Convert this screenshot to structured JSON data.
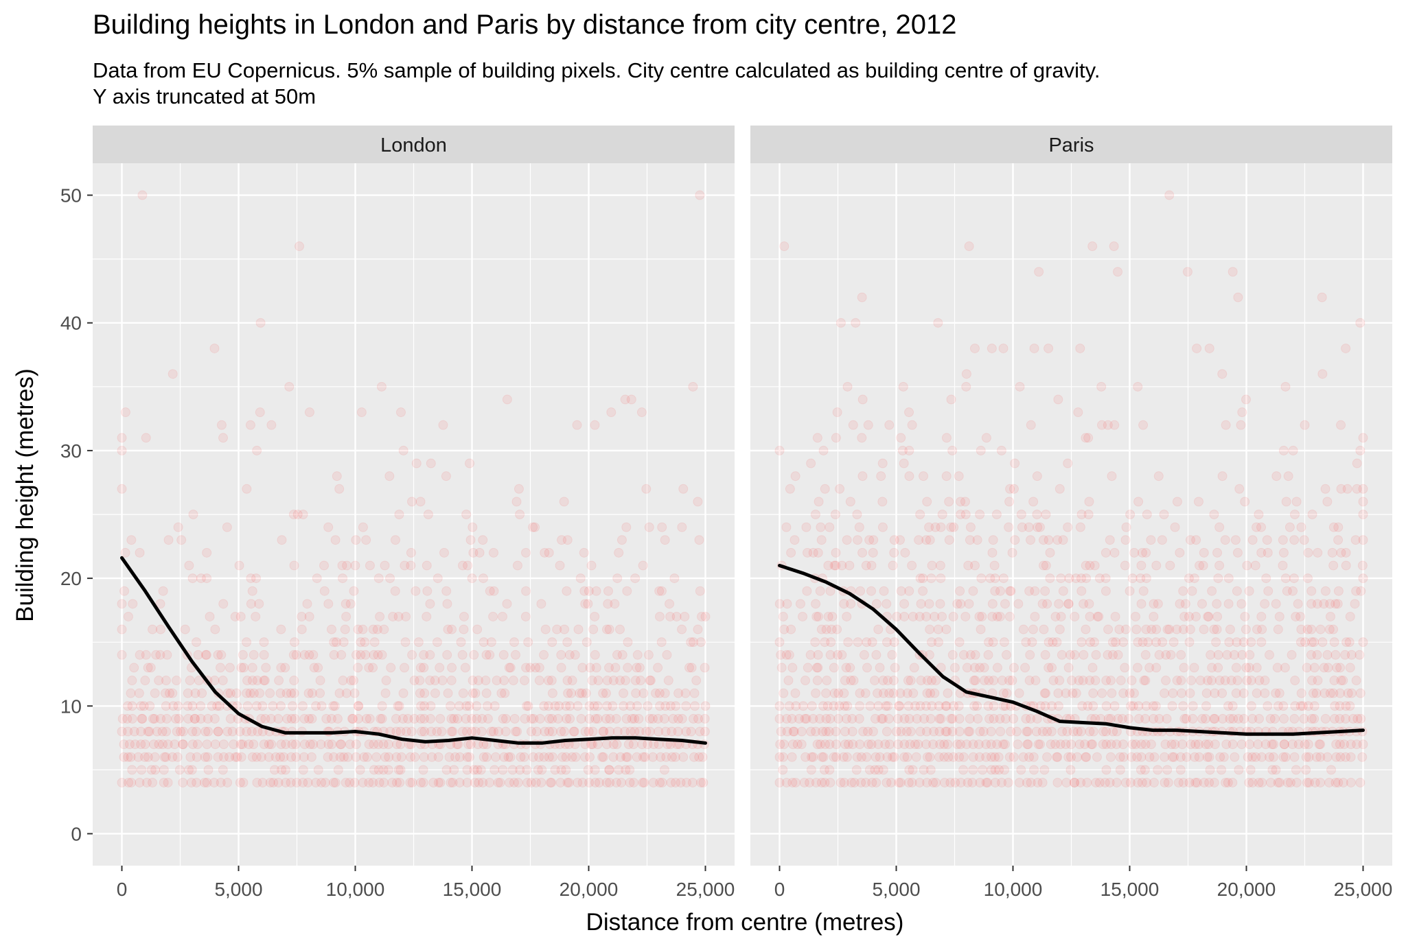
{
  "chart_data": {
    "type": "scatter",
    "title": "Building heights in London and Paris by distance from city centre, 2012",
    "subtitle_lines": [
      "Data from EU Copernicus. 5% sample of building pixels. City centre calculated as building centre of gravity.",
      "Y axis truncated at 50m"
    ],
    "xlabel": "Distance from centre (metres)",
    "ylabel": "Building height (metres)",
    "xlim": [
      -1250,
      26250
    ],
    "ylim": [
      -2.5,
      52.5
    ],
    "x_ticks": [
      0,
      5000,
      10000,
      15000,
      20000,
      25000
    ],
    "x_tick_labels": [
      "0",
      "5,000",
      "10,000",
      "15,000",
      "20,000",
      "25,000"
    ],
    "y_ticks": [
      0,
      10,
      20,
      30,
      40,
      50
    ],
    "y_tick_labels": [
      "0",
      "10",
      "20",
      "30",
      "40",
      "50"
    ],
    "grid": true,
    "point_color": "#ff0000",
    "trend_color": "#000000",
    "panel_background": "#ebebeb",
    "strip_background": "#d9d9d9",
    "panels": [
      {
        "name": "London",
        "scatter_profile": [
          {
            "h": 4,
            "density": 0.95
          },
          {
            "h": 5,
            "density": 0.45
          },
          {
            "h": 6,
            "density": 0.9
          },
          {
            "h": 7,
            "density": 0.95
          },
          {
            "h": 8,
            "density": 0.95
          },
          {
            "h": 9,
            "density": 0.85
          },
          {
            "h": 10,
            "density": 0.7
          },
          {
            "h": 11,
            "density": 0.55
          },
          {
            "h": 12,
            "density": 0.5
          },
          {
            "h": 13,
            "density": 0.4
          },
          {
            "h": 14,
            "density": 0.35
          },
          {
            "h": 15,
            "density": 0.3
          },
          {
            "h": 16,
            "density": 0.25
          },
          {
            "h": 17,
            "density": 0.22
          },
          {
            "h": 18,
            "density": 0.2
          },
          {
            "h": 19,
            "density": 0.17
          },
          {
            "h": 20,
            "density": 0.15
          },
          {
            "h": 21,
            "density": 0.13
          },
          {
            "h": 22,
            "density": 0.12
          },
          {
            "h": 23,
            "density": 0.1
          },
          {
            "h": 24,
            "density": 0.09
          },
          {
            "h": 25,
            "density": 0.08
          },
          {
            "h": 26,
            "density": 0.07
          },
          {
            "h": 27,
            "density": 0.06
          },
          {
            "h": 28,
            "density": 0.06
          },
          {
            "h": 29,
            "density": 0.05
          },
          {
            "h": 30,
            "density": 0.05
          },
          {
            "h": 31,
            "density": 0.04
          },
          {
            "h": 32,
            "density": 0.04
          },
          {
            "h": 33,
            "density": 0.04
          },
          {
            "h": 34,
            "density": 0.03
          },
          {
            "h": 35,
            "density": 0.03
          },
          {
            "h": 36,
            "density": 0.03
          },
          {
            "h": 38,
            "density": 0.02
          },
          {
            "h": 40,
            "density": 0.02
          },
          {
            "h": 42,
            "density": 0.02
          },
          {
            "h": 44,
            "density": 0.015
          },
          {
            "h": 46,
            "density": 0.015
          },
          {
            "h": 48,
            "density": 0.015
          },
          {
            "h": 50,
            "density": 0.01
          }
        ],
        "smooth": [
          {
            "x": 0,
            "y": 21.6
          },
          {
            "x": 1000,
            "y": 19.0
          },
          {
            "x": 2000,
            "y": 16.2
          },
          {
            "x": 3000,
            "y": 13.5
          },
          {
            "x": 4000,
            "y": 11.1
          },
          {
            "x": 5000,
            "y": 9.4
          },
          {
            "x": 6000,
            "y": 8.4
          },
          {
            "x": 7000,
            "y": 7.9
          },
          {
            "x": 8000,
            "y": 7.9
          },
          {
            "x": 9000,
            "y": 7.9
          },
          {
            "x": 10000,
            "y": 8.0
          },
          {
            "x": 11000,
            "y": 7.8
          },
          {
            "x": 12000,
            "y": 7.4
          },
          {
            "x": 13000,
            "y": 7.2
          },
          {
            "x": 14000,
            "y": 7.3
          },
          {
            "x": 15000,
            "y": 7.5
          },
          {
            "x": 16000,
            "y": 7.3
          },
          {
            "x": 17000,
            "y": 7.1
          },
          {
            "x": 18000,
            "y": 7.1
          },
          {
            "x": 19000,
            "y": 7.3
          },
          {
            "x": 20000,
            "y": 7.4
          },
          {
            "x": 21000,
            "y": 7.5
          },
          {
            "x": 22000,
            "y": 7.5
          },
          {
            "x": 23000,
            "y": 7.4
          },
          {
            "x": 24000,
            "y": 7.3
          },
          {
            "x": 25000,
            "y": 7.1
          }
        ]
      },
      {
        "name": "Paris",
        "scatter_profile": [
          {
            "h": 4,
            "density": 0.9
          },
          {
            "h": 5,
            "density": 0.4
          },
          {
            "h": 6,
            "density": 0.85
          },
          {
            "h": 7,
            "density": 0.95
          },
          {
            "h": 8,
            "density": 0.95
          },
          {
            "h": 9,
            "density": 0.9
          },
          {
            "h": 10,
            "density": 0.75
          },
          {
            "h": 11,
            "density": 0.65
          },
          {
            "h": 12,
            "density": 0.6
          },
          {
            "h": 13,
            "density": 0.55
          },
          {
            "h": 14,
            "density": 0.5
          },
          {
            "h": 15,
            "density": 0.45
          },
          {
            "h": 16,
            "density": 0.45
          },
          {
            "h": 17,
            "density": 0.45
          },
          {
            "h": 18,
            "density": 0.45
          },
          {
            "h": 19,
            "density": 0.4
          },
          {
            "h": 20,
            "density": 0.4
          },
          {
            "h": 21,
            "density": 0.38
          },
          {
            "h": 22,
            "density": 0.35
          },
          {
            "h": 23,
            "density": 0.3
          },
          {
            "h": 24,
            "density": 0.25
          },
          {
            "h": 25,
            "density": 0.2
          },
          {
            "h": 26,
            "density": 0.17
          },
          {
            "h": 27,
            "density": 0.14
          },
          {
            "h": 28,
            "density": 0.12
          },
          {
            "h": 29,
            "density": 0.1
          },
          {
            "h": 30,
            "density": 0.09
          },
          {
            "h": 31,
            "density": 0.08
          },
          {
            "h": 32,
            "density": 0.07
          },
          {
            "h": 33,
            "density": 0.06
          },
          {
            "h": 34,
            "density": 0.06
          },
          {
            "h": 35,
            "density": 0.05
          },
          {
            "h": 36,
            "density": 0.05
          },
          {
            "h": 38,
            "density": 0.04
          },
          {
            "h": 40,
            "density": 0.03
          },
          {
            "h": 42,
            "density": 0.03
          },
          {
            "h": 44,
            "density": 0.02
          },
          {
            "h": 46,
            "density": 0.02
          },
          {
            "h": 48,
            "density": 0.02
          },
          {
            "h": 50,
            "density": 0.01
          }
        ],
        "smooth": [
          {
            "x": 0,
            "y": 21.0
          },
          {
            "x": 1000,
            "y": 20.4
          },
          {
            "x": 2000,
            "y": 19.7
          },
          {
            "x": 3000,
            "y": 18.8
          },
          {
            "x": 4000,
            "y": 17.6
          },
          {
            "x": 5000,
            "y": 16.0
          },
          {
            "x": 6000,
            "y": 14.1
          },
          {
            "x": 7000,
            "y": 12.3
          },
          {
            "x": 8000,
            "y": 11.1
          },
          {
            "x": 9000,
            "y": 10.7
          },
          {
            "x": 10000,
            "y": 10.3
          },
          {
            "x": 11000,
            "y": 9.6
          },
          {
            "x": 12000,
            "y": 8.8
          },
          {
            "x": 13000,
            "y": 8.7
          },
          {
            "x": 14000,
            "y": 8.6
          },
          {
            "x": 15000,
            "y": 8.3
          },
          {
            "x": 16000,
            "y": 8.1
          },
          {
            "x": 17000,
            "y": 8.1
          },
          {
            "x": 18000,
            "y": 8.0
          },
          {
            "x": 19000,
            "y": 7.9
          },
          {
            "x": 20000,
            "y": 7.8
          },
          {
            "x": 21000,
            "y": 7.8
          },
          {
            "x": 22000,
            "y": 7.8
          },
          {
            "x": 23000,
            "y": 7.9
          },
          {
            "x": 24000,
            "y": 8.0
          },
          {
            "x": 25000,
            "y": 8.1
          }
        ]
      }
    ]
  }
}
